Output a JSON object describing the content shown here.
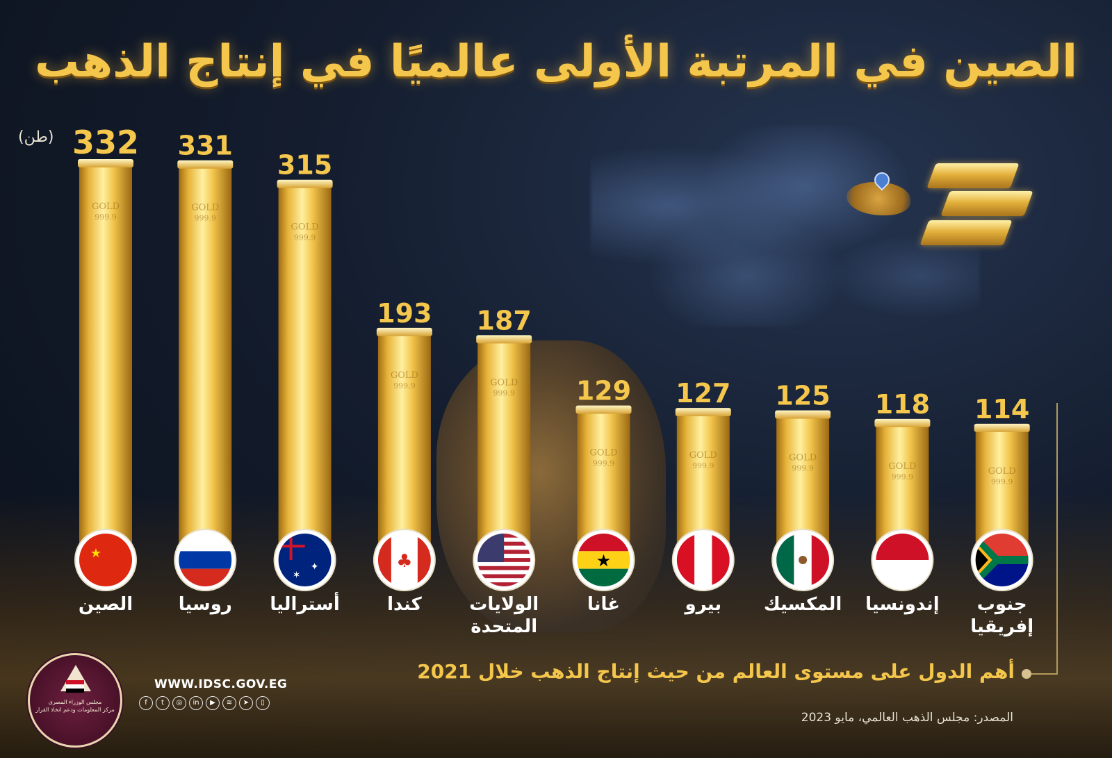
{
  "title": "الصين في المرتبة الأولى عالميًا في إنتاج الذهب",
  "unit_label": "(طن)",
  "subtitle": "أهم الدول على مستوى العالم من حيث إنتاج الذهب خلال 2021",
  "source": "المصدر: مجلس الذهب العالمي، مايو 2023",
  "website": "WWW.IDSC.GOV.EG",
  "logo": {
    "line1": "مجلس الوزراء المصرى",
    "line2": "مركز المعلومات ودعم اتخاذ القرار"
  },
  "bar_stamp": {
    "line1": "GOLD",
    "line2": "999.9"
  },
  "socials": [
    {
      "icon": "facebook-icon",
      "glyph": "f"
    },
    {
      "icon": "twitter-icon",
      "glyph": "t"
    },
    {
      "icon": "instagram-icon",
      "glyph": "◎"
    },
    {
      "icon": "linkedin-icon",
      "glyph": "in"
    },
    {
      "icon": "youtube-icon",
      "glyph": "▶"
    },
    {
      "icon": "soundcloud-icon",
      "glyph": "≋"
    },
    {
      "icon": "telegram-icon",
      "glyph": "➤"
    },
    {
      "icon": "app-icon",
      "glyph": "▯"
    }
  ],
  "colors": {
    "accent_gold": "#f4c64c",
    "background": "#141d2e"
  },
  "chart_data": {
    "type": "bar",
    "title": "الصين في المرتبة الأولى عالميًا في إنتاج الذهب",
    "ylabel": "(طن)",
    "xlabel": "",
    "ylim": [
      0,
      332
    ],
    "grid": false,
    "categories": [
      [
        "الصين"
      ],
      [
        "روسيا"
      ],
      [
        "أستراليا"
      ],
      [
        "كندا"
      ],
      [
        "الولايات",
        "المتحدة"
      ],
      [
        "غانا"
      ],
      [
        "بيرو"
      ],
      [
        "المكسيك"
      ],
      [
        "إندونسيا"
      ],
      [
        "جنوب",
        "إفريقيا"
      ]
    ],
    "values": [
      332,
      331,
      315,
      193,
      187,
      129,
      127,
      125,
      118,
      114
    ],
    "flags": [
      "china",
      "russia",
      "australia",
      "canada",
      "united-states",
      "ghana",
      "peru",
      "mexico",
      "indonesia",
      "south-africa"
    ]
  }
}
